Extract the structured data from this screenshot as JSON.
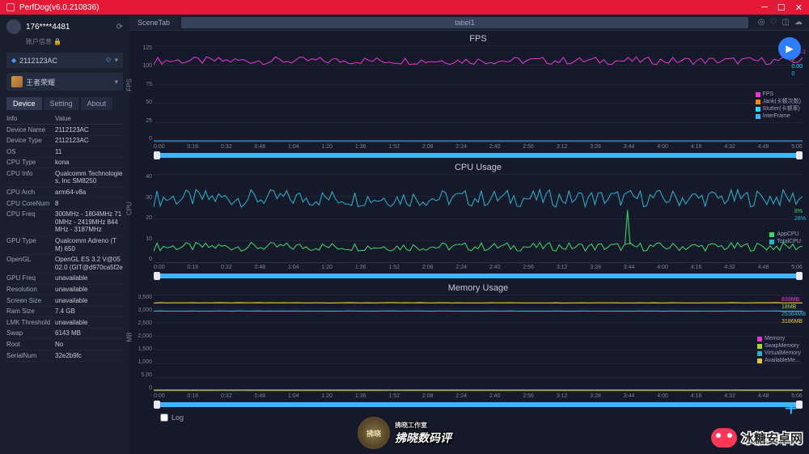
{
  "app": {
    "title": "PerfDog(v6.0.210836)"
  },
  "user": {
    "name": "176****4481",
    "sub": "账户信息"
  },
  "device_select": {
    "name": "2112123AC"
  },
  "app_select": {
    "name": "王者荣耀"
  },
  "tabs": {
    "device": "Device",
    "setting": "Setting",
    "about": "About"
  },
  "info_header": {
    "k": "Info",
    "v": "Value"
  },
  "info": [
    {
      "k": "Device Name",
      "v": "2112123AC"
    },
    {
      "k": "Device Type",
      "v": "2112123AC"
    },
    {
      "k": "OS",
      "v": "11"
    },
    {
      "k": "CPU Type",
      "v": "kona"
    },
    {
      "k": "CPU Info",
      "v": "Qualcomm Technologies, Inc SM8250"
    },
    {
      "k": "CPU Arch",
      "v": "arm64-v8a"
    },
    {
      "k": "CPU CoreNum",
      "v": "8"
    },
    {
      "k": "CPU Freq",
      "v": "300MHz - 1804MHz 710MHz - 2419MHz 844MHz - 3187MHz"
    },
    {
      "k": "GPU Type",
      "v": "Qualcomm Adreno (TM) 650"
    },
    {
      "k": "OpenGL",
      "v": "OpenGL ES 3.2 V@0502.0 (GIT@d970ca5f2e"
    },
    {
      "k": "GPU Freq",
      "v": "unavailable"
    },
    {
      "k": "Resolution",
      "v": "unavailable"
    },
    {
      "k": "Screen Size",
      "v": "unavailable"
    },
    {
      "k": "Ram Size",
      "v": "7.4 GB"
    },
    {
      "k": "LMK Threshold",
      "v": "unavailable"
    },
    {
      "k": "Swap",
      "v": "6143 MB"
    },
    {
      "k": "Root",
      "v": "No"
    },
    {
      "k": "SerialNum",
      "v": "32e2b9fc"
    }
  ],
  "tabbar": {
    "scene": "SceneTab",
    "label": "tabel1"
  },
  "xticks": [
    "0:00",
    "0:16",
    "0:32",
    "0:48",
    "1:04",
    "1:20",
    "1:36",
    "1:52",
    "2:08",
    "2:24",
    "2:40",
    "2:56",
    "3:12",
    "3:28",
    "3:44",
    "4:00",
    "4:16",
    "4:32",
    "4:48",
    "5:06"
  ],
  "fps": {
    "title": "FPS",
    "ylabel": "FPS",
    "yticks": [
      "125",
      "100",
      "75",
      "50",
      "25",
      "0"
    ],
    "ylim": [
      0,
      125
    ],
    "series": {
      "fps": {
        "color": "#e838d4",
        "value": 108.1,
        "label": "FPS",
        "baseline": 105,
        "noise": 5
      },
      "jank": {
        "color": "#ff8a00",
        "value": 0,
        "label": "Jank(卡顿次数)"
      },
      "stutter": {
        "color": "#26d9ff",
        "value": "0.00",
        "label": "Stutter(卡顿率)"
      },
      "inter": {
        "color": "#3fb4ff",
        "value": 0,
        "label": "InterFrame"
      }
    }
  },
  "cpu": {
    "title": "CPU Usage",
    "ylabel": "CPU",
    "yticks": [
      "40",
      "30",
      "20",
      "10",
      "0"
    ],
    "ylim": [
      0,
      40
    ],
    "series": {
      "app": {
        "color": "#39d86a",
        "value": "8%",
        "label": "AppCPU",
        "baseline": 7,
        "noise": 2
      },
      "total": {
        "color": "#2ab0c9",
        "value": "28%",
        "label": "TotalCPU",
        "baseline": 29,
        "noise": 4
      }
    }
  },
  "mem": {
    "title": "Memory Usage",
    "ylabel": "MB",
    "yticks": [
      "3,500",
      "3,000",
      "2,500",
      "2,000",
      "1,500",
      "1,000",
      "5,00",
      "0"
    ],
    "ylim": [
      0,
      3500
    ],
    "series": {
      "memory": {
        "color": "#e838d4",
        "value": "839MB",
        "label": "Memory",
        "baseline": 20,
        "noise": 1
      },
      "swap": {
        "color": "#a3d639",
        "value": "18MB",
        "label": "SwapMemory",
        "baseline": 30,
        "noise": 1
      },
      "virtual": {
        "color": "#2ab0c9",
        "value": "25364MB",
        "label": "VirtualMemory",
        "baseline": 2900,
        "noise": 5
      },
      "avail": {
        "color": "#e8c839",
        "value": "3186MB",
        "label": "AvailableMe...",
        "baseline": 3200,
        "noise": 5
      }
    }
  },
  "log_label": "Log",
  "watermark1": {
    "badge": "拂晓",
    "line1": "拂晓工作室",
    "line2": "拂晓数码评"
  },
  "watermark2": {
    "text": "冰糖安卓网",
    "url": "www.btxtdmy.com"
  },
  "colors": {
    "titlebar": "#e31937",
    "slider": "#3fb4ff",
    "play": "#2e7dff"
  }
}
